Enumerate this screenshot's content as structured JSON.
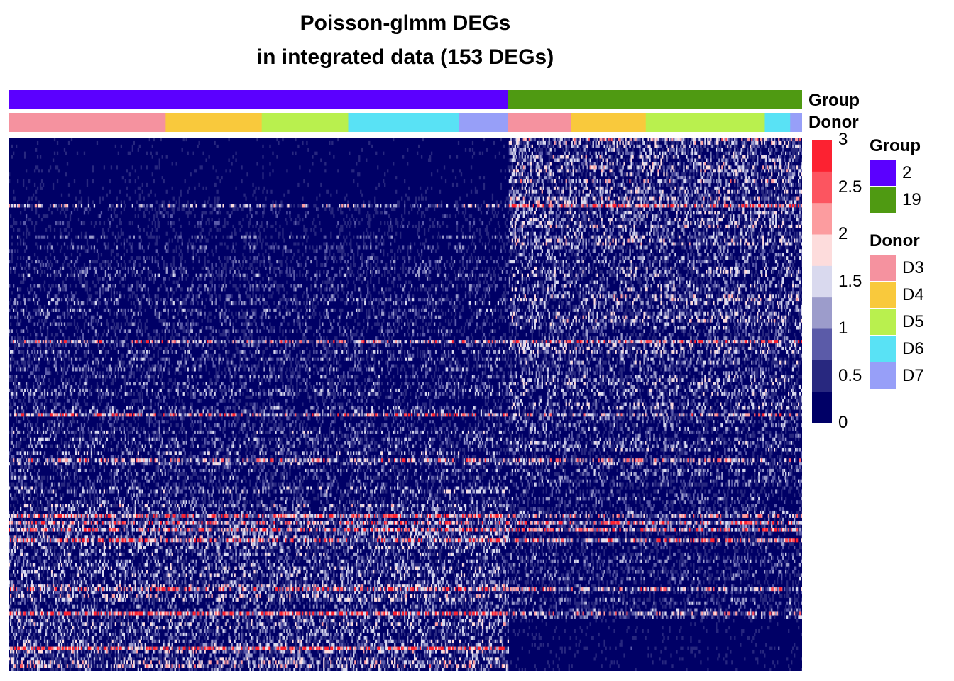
{
  "title_line1": "Poisson-glmm DEGs",
  "title_line2": "in integrated data (153 DEGs)",
  "annotation_labels": {
    "group": "Group",
    "donor": "Donor"
  },
  "legends": {
    "group": {
      "title": "Group",
      "items": [
        {
          "label": "2",
          "color": "#5B00FF"
        },
        {
          "label": "19",
          "color": "#4F9A12"
        }
      ]
    },
    "donor": {
      "title": "Donor",
      "items": [
        {
          "label": "D3",
          "color": "#F5929F"
        },
        {
          "label": "D4",
          "color": "#F9C93C"
        },
        {
          "label": "D5",
          "color": "#B9F04E"
        },
        {
          "label": "D6",
          "color": "#59E2F5"
        },
        {
          "label": "D7",
          "color": "#979FF8"
        }
      ]
    }
  },
  "chart_data": {
    "type": "heatmap",
    "n_rows": 153,
    "value_range": [
      0,
      3
    ],
    "colorbar": {
      "ticks": [
        "0",
        "0.5",
        "1",
        "1.5",
        "2",
        "2.5",
        "3"
      ],
      "bins": [
        "#000066",
        "#28287F",
        "#5B5BA8",
        "#9C9CCB",
        "#D9D9EE",
        "#FDDCDC",
        "#FC9C9F",
        "#FC5560",
        "#FC2231"
      ]
    },
    "column_groups": [
      {
        "group": "2",
        "fraction": 0.629
      },
      {
        "group": "19",
        "fraction": 0.371
      }
    ],
    "column_donors": [
      {
        "donor": "D3",
        "group": "2",
        "fraction": 0.198
      },
      {
        "donor": "D4",
        "group": "2",
        "fraction": 0.121
      },
      {
        "donor": "D5",
        "group": "2",
        "fraction": 0.109
      },
      {
        "donor": "D6",
        "group": "2",
        "fraction": 0.14
      },
      {
        "donor": "D7",
        "group": "2",
        "fraction": 0.061
      },
      {
        "donor": "D3",
        "group": "19",
        "fraction": 0.08
      },
      {
        "donor": "D4",
        "group": "19",
        "fraction": 0.094
      },
      {
        "donor": "D5",
        "group": "19",
        "fraction": 0.15
      },
      {
        "donor": "D6",
        "group": "19",
        "fraction": 0.032
      },
      {
        "donor": "D7",
        "group": "19",
        "fraction": 0.015
      }
    ]
  }
}
